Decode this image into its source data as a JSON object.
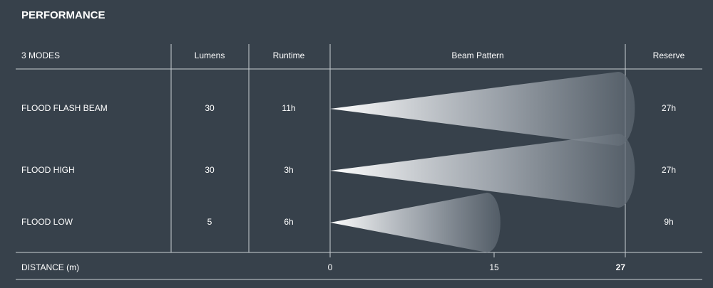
{
  "title": "PERFORMANCE",
  "table": {
    "headers": [
      "3 MODES",
      "Lumens",
      "Runtime",
      "Beam Pattern",
      "Reserve"
    ],
    "rows": [
      {
        "mode": "FLOOD FLASH BEAM",
        "lumens": 30,
        "runtime": "11h",
        "reserve": "27h",
        "beam_distance": 27
      },
      {
        "mode": "FLOOD HIGH",
        "lumens": 30,
        "runtime": "3h",
        "reserve": "27h",
        "beam_distance": 27
      },
      {
        "mode": "FLOOD LOW",
        "lumens": 5,
        "runtime": "6h",
        "reserve": "9h",
        "beam_distance": 15
      }
    ]
  },
  "distance_axis": {
    "label": "DISTANCE (m)",
    "xlim": [
      0,
      27
    ],
    "xticks": [
      0,
      15,
      27
    ]
  }
}
